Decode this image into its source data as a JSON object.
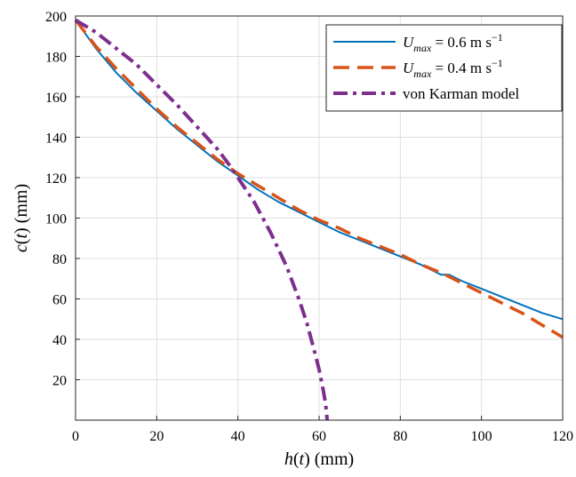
{
  "chart_data": {
    "type": "line",
    "title": "",
    "xlabel": "h(t) (mm)",
    "ylabel": "c(t) (mm)",
    "xlim": [
      0,
      120
    ],
    "ylim": [
      0,
      200
    ],
    "xticks": [
      0,
      20,
      40,
      60,
      80,
      100,
      120
    ],
    "yticks": [
      20,
      40,
      60,
      80,
      100,
      120,
      140,
      160,
      180,
      200
    ],
    "grid": true,
    "legend_position": "top-right",
    "series": [
      {
        "name": "U_max = 0.6 m s^-1",
        "color": "#0072BD",
        "style": "solid",
        "x": [
          0,
          5,
          10,
          15,
          20,
          25,
          30,
          35,
          40,
          45,
          50,
          55,
          60,
          65,
          70,
          75,
          80,
          85,
          88,
          90,
          92,
          95,
          100,
          105,
          110,
          115,
          120
        ],
        "y": [
          198,
          184,
          172,
          162,
          153,
          144,
          136,
          128,
          121,
          114,
          108,
          103,
          98,
          93,
          89,
          85,
          81,
          77,
          74,
          72,
          72,
          69,
          65,
          61,
          57,
          53,
          50
        ]
      },
      {
        "name": "U_max = 0.4 m s^-1",
        "color": "#D95319",
        "style": "dashed",
        "x": [
          0,
          5,
          10,
          15,
          20,
          25,
          30,
          35,
          40,
          45,
          50,
          55,
          60,
          65,
          70,
          75,
          80,
          85,
          90,
          95,
          100,
          105,
          110,
          115,
          120
        ],
        "y": [
          198,
          185,
          174,
          164,
          154,
          145,
          137,
          129,
          122,
          116,
          110,
          104,
          99,
          95,
          90,
          86,
          82,
          77,
          73,
          68,
          63,
          58,
          53,
          47,
          41
        ]
      },
      {
        "name": "von Karman model",
        "color": "#7E2F8E",
        "style": "dashdot",
        "x": [
          0,
          5,
          10,
          15,
          20,
          25,
          30,
          35,
          38,
          40,
          44,
          48,
          52,
          55,
          57,
          59,
          60,
          61,
          61.6,
          62
        ],
        "y": [
          198,
          192,
          184,
          176,
          166,
          156,
          145,
          134,
          126,
          120,
          108,
          93,
          76,
          60,
          48,
          33,
          25,
          15,
          8,
          0
        ]
      }
    ],
    "legend": [
      {
        "prefix": "U",
        "sub": "max",
        "middle": " = 0.6 m s",
        "sup": "−1"
      },
      {
        "prefix": "U",
        "sub": "max",
        "middle": " = 0.4 m s",
        "sup": "−1"
      },
      {
        "prefix": "von Karman model",
        "sub": "",
        "middle": "",
        "sup": ""
      }
    ]
  }
}
